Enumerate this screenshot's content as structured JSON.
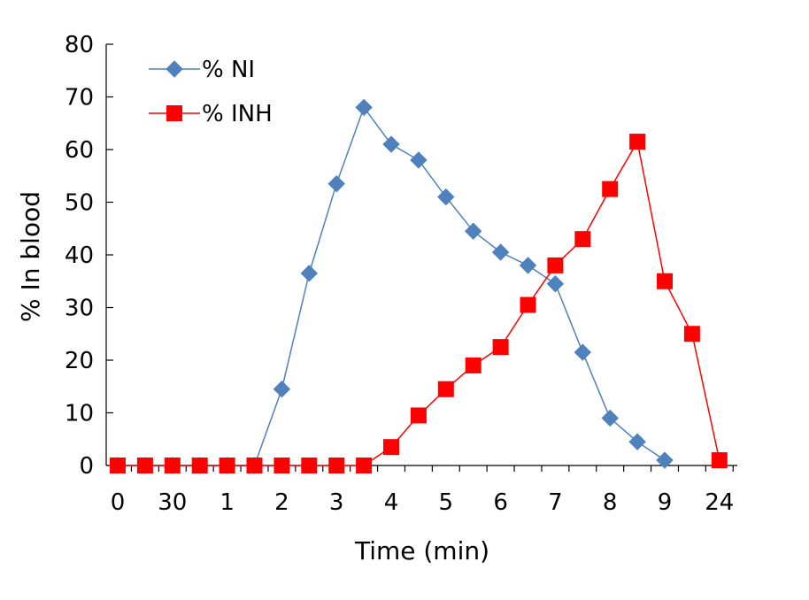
{
  "chart_data": {
    "type": "line",
    "xlabel": "Time (min)",
    "ylabel": "% In blood",
    "ylim": [
      0,
      80
    ],
    "yticks": [
      0,
      10,
      20,
      30,
      40,
      50,
      60,
      70,
      80
    ],
    "x_positions": 23,
    "x_tick_labels": [
      {
        "index": 0,
        "label": "0"
      },
      {
        "index": 2,
        "label": "30"
      },
      {
        "index": 4,
        "label": "1"
      },
      {
        "index": 6,
        "label": "2"
      },
      {
        "index": 8,
        "label": "3"
      },
      {
        "index": 10,
        "label": "4"
      },
      {
        "index": 12,
        "label": "5"
      },
      {
        "index": 14,
        "label": "6"
      },
      {
        "index": 16,
        "label": "7"
      },
      {
        "index": 18,
        "label": "8"
      },
      {
        "index": 20,
        "label": "9"
      },
      {
        "index": 22,
        "label": "24"
      }
    ],
    "legend_position": "top-left",
    "grid": false,
    "series": [
      {
        "name": "% NI",
        "color": "#4F81BD",
        "marker": "diamond",
        "values": [
          0,
          0,
          0,
          0,
          0,
          0,
          14.5,
          36.5,
          53.5,
          68,
          61,
          58,
          51,
          44.5,
          40.5,
          38,
          34.5,
          21.5,
          9,
          4.5,
          1,
          null,
          null
        ]
      },
      {
        "name": "% INH",
        "color": "#FF0000",
        "marker": "square",
        "values": [
          0,
          0,
          0,
          0,
          0,
          0,
          0,
          0,
          0,
          0,
          3.5,
          9.5,
          14.5,
          19,
          22.5,
          30.5,
          38,
          43,
          52.5,
          61.5,
          35,
          25,
          1
        ]
      }
    ]
  }
}
